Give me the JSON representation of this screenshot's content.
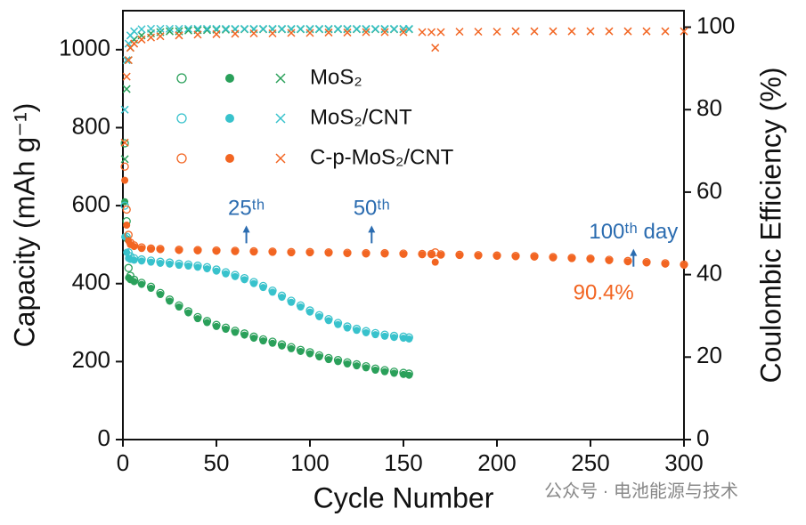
{
  "chart_data": {
    "type": "scatter",
    "x_label": "Cycle Number",
    "y_label": "Capacity (mAh g⁻¹)",
    "y2_label": "Coulombic Efficiency (%)",
    "xlim": [
      0,
      300
    ],
    "xticks": [
      0,
      50,
      100,
      150,
      200,
      250,
      300
    ],
    "ylim": [
      0,
      1100
    ],
    "yticks": [
      0,
      200,
      400,
      600,
      800,
      1000
    ],
    "y2lim": [
      0,
      104
    ],
    "y2ticks": [
      0,
      20,
      40,
      60,
      80,
      100
    ],
    "legend": "upper left",
    "watermark": "公众号 · 电池能源与技术",
    "series": [
      {
        "name": "MoS₂",
        "color": "#2aa05a",
        "x": [
          1,
          2,
          3,
          4,
          6,
          10,
          15,
          20,
          25,
          30,
          35,
          40,
          45,
          50,
          55,
          60,
          65,
          70,
          75,
          80,
          85,
          90,
          95,
          100,
          105,
          110,
          115,
          120,
          125,
          130,
          135,
          140,
          145,
          150,
          153
        ],
        "charge": [
          760,
          560,
          440,
          420,
          410,
          402,
          392,
          376,
          359,
          344,
          329,
          314,
          304,
          294,
          287,
          279,
          272,
          264,
          257,
          251,
          244,
          237,
          230,
          224,
          216,
          209,
          204,
          198,
          193,
          188,
          182,
          178,
          174,
          171,
          169
        ],
        "values": [
          610,
          515,
          415,
          410,
          405,
          398,
          388,
          372,
          355,
          340,
          325,
          310,
          300,
          290,
          283,
          275,
          268,
          260,
          253,
          247,
          240,
          233,
          226,
          220,
          212,
          205,
          200,
          194,
          189,
          184,
          178,
          174,
          170,
          167,
          165
        ],
        "efficiency": [
          68,
          85,
          92,
          95,
          97,
          98,
          98.5,
          98.8,
          99,
          99,
          99.2,
          99.3,
          99.3,
          99.4,
          99.4,
          99.5,
          99.5,
          99.5,
          99.5,
          99.5,
          99.5,
          99.5,
          99.5,
          99.5,
          99.5,
          99.5,
          99.5,
          99.5,
          99.5,
          99.5,
          99.5,
          99.5,
          99.5,
          99.5,
          99.5
        ]
      },
      {
        "name": "MoS₂/CNT",
        "color": "#38c2cc",
        "x": [
          1,
          2,
          3,
          4,
          6,
          10,
          15,
          20,
          25,
          30,
          35,
          40,
          45,
          50,
          55,
          60,
          65,
          70,
          75,
          80,
          85,
          90,
          95,
          100,
          105,
          110,
          115,
          120,
          125,
          130,
          135,
          140,
          145,
          150,
          153
        ],
        "charge": [
          600,
          520,
          480,
          470,
          465,
          462,
          459,
          456,
          454,
          451,
          449,
          446,
          442,
          436,
          429,
          422,
          414,
          404,
          394,
          382,
          369,
          356,
          344,
          331,
          319,
          309,
          299,
          290,
          284,
          278,
          273,
          269,
          266,
          264,
          262
        ],
        "values": [
          520,
          480,
          465,
          462,
          460,
          458,
          455,
          452,
          450,
          447,
          445,
          442,
          438,
          432,
          425,
          418,
          410,
          400,
          390,
          378,
          365,
          352,
          340,
          327,
          315,
          305,
          295,
          286,
          280,
          274,
          269,
          265,
          262,
          260,
          258
        ],
        "efficiency": [
          80,
          92,
          96,
          98,
          99,
          99.5,
          99.6,
          99.6,
          99.6,
          99.6,
          99.6,
          99.6,
          99.6,
          99.6,
          99.6,
          99.6,
          99.6,
          99.6,
          99.6,
          99.6,
          99.6,
          99.6,
          99.6,
          99.6,
          99.6,
          99.6,
          99.6,
          99.6,
          99.6,
          99.6,
          99.6,
          99.6,
          99.6,
          99.6,
          99.6
        ]
      },
      {
        "name": "C-p-MoS₂/CNT",
        "color": "#f26522",
        "x": [
          1,
          2,
          3,
          4,
          6,
          10,
          15,
          20,
          30,
          40,
          50,
          60,
          70,
          80,
          90,
          100,
          110,
          120,
          130,
          140,
          150,
          160,
          165,
          167,
          170,
          180,
          190,
          200,
          210,
          220,
          230,
          240,
          250,
          260,
          270,
          280,
          290,
          300
        ],
        "charge": [
          700,
          590,
          525,
          505,
          498,
          493,
          490,
          489,
          487,
          486,
          485,
          484,
          483,
          482,
          481,
          481,
          480,
          479,
          478,
          478,
          477,
          476,
          476,
          480,
          475,
          474,
          473,
          472,
          471,
          470,
          468,
          466,
          464,
          461,
          458,
          455,
          452,
          449
        ],
        "values": [
          665,
          550,
          510,
          500,
          495,
          490,
          488,
          487,
          485,
          484,
          483,
          482,
          481,
          480,
          479,
          479,
          478,
          477,
          476,
          476,
          475,
          474,
          474,
          455,
          473,
          472,
          471,
          470,
          469,
          468,
          466,
          464,
          462,
          459,
          456,
          453,
          450,
          447
        ],
        "efficiency": [
          72,
          88,
          92,
          95,
          96,
          97,
          97.5,
          97.8,
          98,
          98.2,
          98.3,
          98.4,
          98.5,
          98.5,
          98.6,
          98.6,
          98.7,
          98.7,
          98.8,
          98.8,
          98.8,
          98.8,
          98.8,
          95,
          98.8,
          98.9,
          98.9,
          98.9,
          99,
          99,
          99,
          99,
          99,
          99,
          99,
          99,
          99,
          99
        ]
      }
    ],
    "annotations": [
      {
        "text": "25ᵗʰ",
        "x": 66,
        "y": 540,
        "arrow": true,
        "color": "#2b6cb0"
      },
      {
        "text": "50ᵗʰ",
        "x": 133,
        "y": 540,
        "arrow": true,
        "color": "#2b6cb0"
      },
      {
        "text": "100ᵗʰ day",
        "x": 273,
        "y": 480,
        "arrow": true,
        "color": "#2b6cb0"
      },
      {
        "text": "90.4%",
        "x": 257,
        "y": 374,
        "arrow": false,
        "color": "#f26522"
      }
    ]
  }
}
